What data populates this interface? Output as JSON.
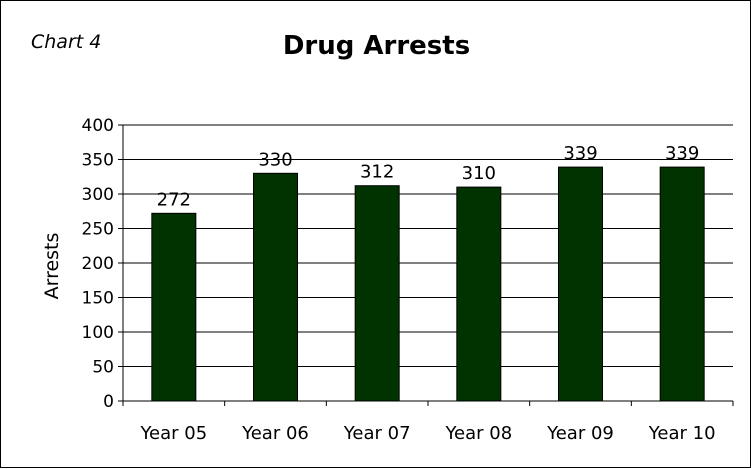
{
  "chart_label": "Chart 4",
  "chart_data": {
    "type": "bar",
    "title": "Drug Arrests",
    "xlabel": "",
    "ylabel": "Arrests",
    "categories": [
      "Year 05",
      "Year 06",
      "Year 07",
      "Year 08",
      "Year 09",
      "Year 10"
    ],
    "values": [
      272,
      330,
      312,
      310,
      339,
      339
    ],
    "data_labels": [
      "272",
      "330",
      "312",
      "310",
      "339",
      "339"
    ],
    "ylim": [
      0,
      400
    ],
    "yticks": [
      0,
      50,
      100,
      150,
      200,
      250,
      300,
      350,
      400
    ],
    "grid": true,
    "legend": "none",
    "colors": {
      "bar": "#003300",
      "bar_edge": "#000000",
      "grid": "#000000"
    }
  }
}
